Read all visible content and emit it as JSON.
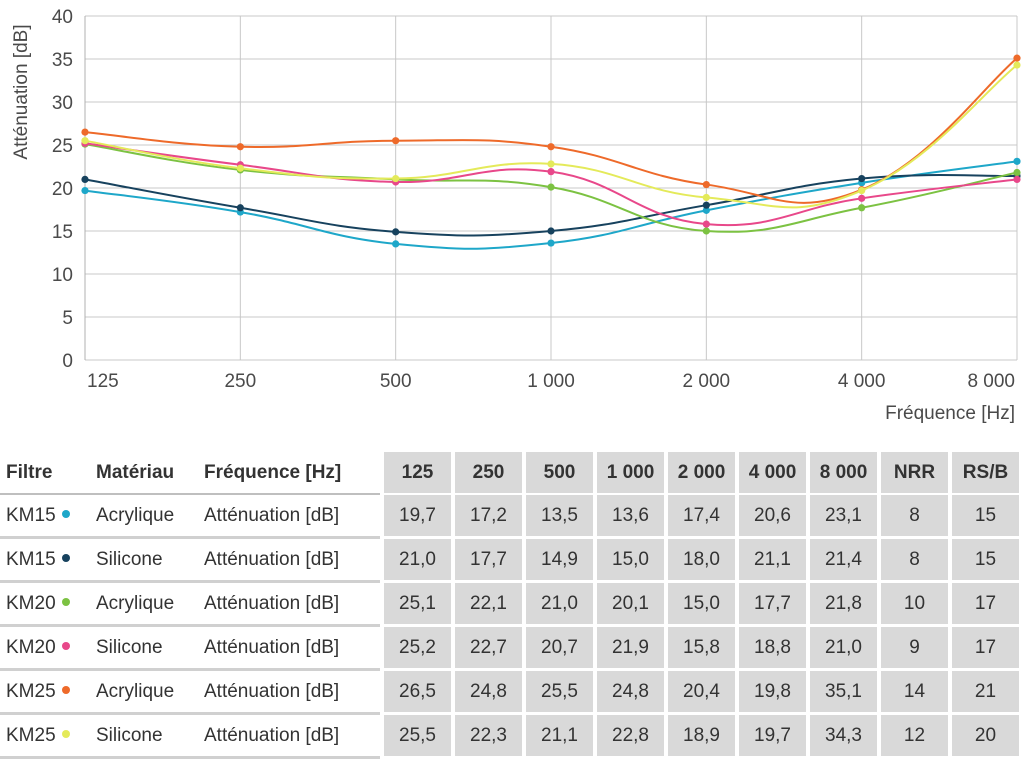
{
  "chart_data": {
    "type": "line",
    "ylabel": "Atténuation [dB]",
    "xlabel": "Fréquence [Hz]",
    "ylim": [
      0,
      40
    ],
    "yticks": [
      "0",
      "5",
      "10",
      "15",
      "20",
      "25",
      "30",
      "35",
      "40"
    ],
    "categories": [
      "125",
      "250",
      "500",
      "1 000",
      "2 000",
      "4 000",
      "8 000"
    ],
    "grid": true,
    "series": [
      {
        "filter": "KM15",
        "material": "Acrylique",
        "color": "#1ea7c9",
        "values": [
          19.7,
          17.2,
          13.5,
          13.6,
          17.4,
          20.6,
          23.1
        ]
      },
      {
        "filter": "KM15",
        "material": "Silicone",
        "color": "#17425e",
        "values": [
          21.0,
          17.7,
          14.9,
          15.0,
          18.0,
          21.1,
          21.4
        ]
      },
      {
        "filter": "KM20",
        "material": "Acrylique",
        "color": "#7cc242",
        "values": [
          25.1,
          22.1,
          21.0,
          20.1,
          15.0,
          17.7,
          21.8
        ]
      },
      {
        "filter": "KM20",
        "material": "Silicone",
        "color": "#e8488a",
        "values": [
          25.2,
          22.7,
          20.7,
          21.9,
          15.8,
          18.8,
          21.0
        ]
      },
      {
        "filter": "KM25",
        "material": "Acrylique",
        "color": "#ee6a2a",
        "values": [
          26.5,
          24.8,
          25.5,
          24.8,
          20.4,
          19.8,
          35.1
        ]
      },
      {
        "filter": "KM25",
        "material": "Silicone",
        "color": "#e4ea5a",
        "values": [
          25.5,
          22.3,
          21.1,
          22.8,
          18.9,
          19.7,
          34.3
        ]
      }
    ]
  },
  "table": {
    "headers": {
      "filtre": "Filtre",
      "materiau": "Matériau",
      "frequence": "Fréquence [Hz]",
      "cols": [
        "125",
        "250",
        "500",
        "1 000",
        "2 000",
        "4 000",
        "8 000",
        "NRR",
        "RS/B"
      ]
    },
    "rows": [
      {
        "filtre": "KM15",
        "materiau": "Acrylique",
        "mesure": "Atténuation [dB]",
        "values": [
          "19,7",
          "17,2",
          "13,5",
          "13,6",
          "17,4",
          "20,6",
          "23,1",
          "8",
          "15"
        ]
      },
      {
        "filtre": "KM15",
        "materiau": "Silicone",
        "mesure": "Atténuation [dB]",
        "values": [
          "21,0",
          "17,7",
          "14,9",
          "15,0",
          "18,0",
          "21,1",
          "21,4",
          "8",
          "15"
        ]
      },
      {
        "filtre": "KM20",
        "materiau": "Acrylique",
        "mesure": "Atténuation [dB]",
        "values": [
          "25,1",
          "22,1",
          "21,0",
          "20,1",
          "15,0",
          "17,7",
          "21,8",
          "10",
          "17"
        ]
      },
      {
        "filtre": "KM20",
        "materiau": "Silicone",
        "mesure": "Atténuation [dB]",
        "values": [
          "25,2",
          "22,7",
          "20,7",
          "21,9",
          "15,8",
          "18,8",
          "21,0",
          "9",
          "17"
        ]
      },
      {
        "filtre": "KM25",
        "materiau": "Acrylique",
        "mesure": "Atténuation [dB]",
        "values": [
          "26,5",
          "24,8",
          "25,5",
          "24,8",
          "20,4",
          "19,8",
          "35,1",
          "14",
          "21"
        ]
      },
      {
        "filtre": "KM25",
        "materiau": "Silicone",
        "mesure": "Atténuation [dB]",
        "values": [
          "25,5",
          "22,3",
          "21,1",
          "22,8",
          "18,9",
          "19,7",
          "34,3",
          "12",
          "20"
        ]
      }
    ]
  }
}
